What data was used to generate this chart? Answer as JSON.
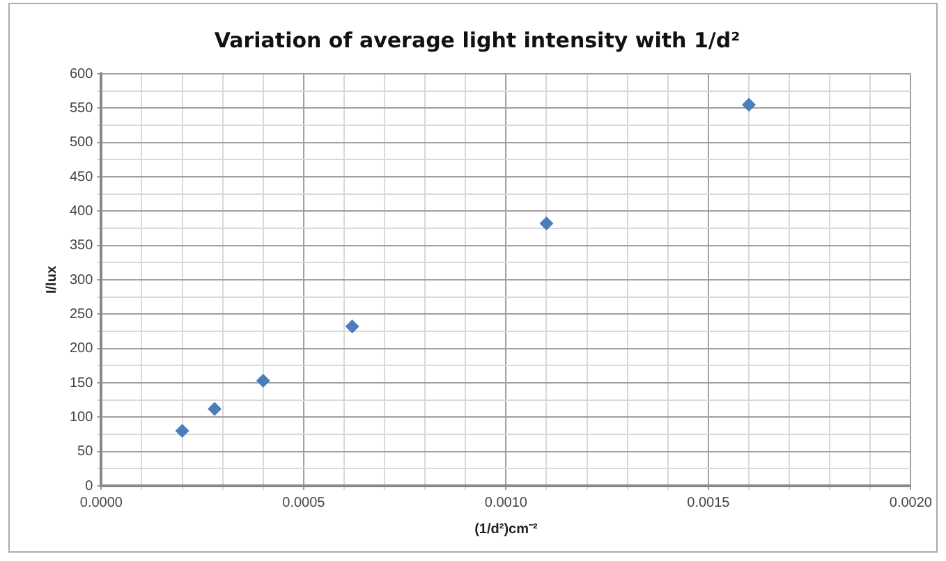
{
  "chart_data": {
    "type": "scatter",
    "title": "Variation of average light intensity with 1/d²",
    "xlabel": "(1/d²)cm⁻²",
    "ylabel": "I/lux",
    "x": [
      0.0002,
      0.00028,
      0.0004,
      0.00062,
      0.0011,
      0.0016
    ],
    "series": [
      {
        "color": "#4a7ebb",
        "values": [
          80,
          112,
          153,
          232,
          382,
          555
        ]
      }
    ],
    "marker": "diamond",
    "grid": true,
    "legend": false,
    "xlim": [
      0,
      0.002
    ],
    "xticks": [
      {
        "value": 0,
        "label": "0.0000"
      },
      {
        "value": 0.0001,
        "label": null
      },
      {
        "value": 0.0002,
        "label": null
      },
      {
        "value": 0.0003,
        "label": null
      },
      {
        "value": 0.0004,
        "label": null
      },
      {
        "value": 0.0005,
        "label": "0.0005"
      },
      {
        "value": 0.0006,
        "label": null
      },
      {
        "value": 0.0007,
        "label": null
      },
      {
        "value": 0.0008,
        "label": null
      },
      {
        "value": 0.0009,
        "label": null
      },
      {
        "value": 0.001,
        "label": "0.0010"
      },
      {
        "value": 0.0011,
        "label": null
      },
      {
        "value": 0.0012,
        "label": null
      },
      {
        "value": 0.0013,
        "label": null
      },
      {
        "value": 0.0014,
        "label": null
      },
      {
        "value": 0.0015,
        "label": "0.0015"
      },
      {
        "value": 0.0016,
        "label": null
      },
      {
        "value": 0.0017,
        "label": null
      },
      {
        "value": 0.0018,
        "label": null
      },
      {
        "value": 0.0019,
        "label": null
      },
      {
        "value": 0.002,
        "label": "0.0020"
      }
    ],
    "ylim": [
      0,
      600
    ],
    "yticks": [
      0,
      {
        "value": 25,
        "label": null
      },
      50,
      {
        "value": 75,
        "label": null
      },
      100,
      {
        "value": 125,
        "label": null
      },
      150,
      {
        "value": 175,
        "label": null
      },
      200,
      {
        "value": 225,
        "label": null
      },
      250,
      {
        "value": 275,
        "label": null
      },
      300,
      {
        "value": 325,
        "label": null
      },
      350,
      {
        "value": 375,
        "label": null
      },
      400,
      {
        "value": 425,
        "label": null
      },
      450,
      {
        "value": 475,
        "label": null
      },
      500,
      {
        "value": 525,
        "label": null
      },
      550,
      {
        "value": 575,
        "label": null
      },
      600
    ]
  }
}
